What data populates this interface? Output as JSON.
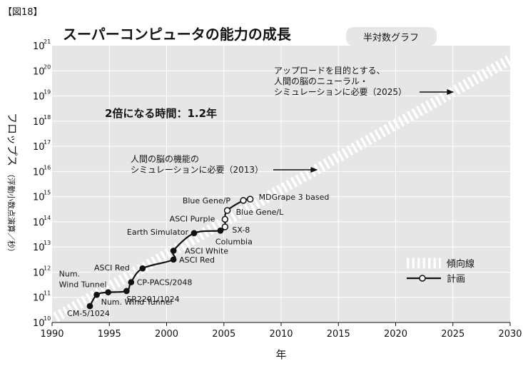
{
  "figure_label": "【図18】",
  "chart_data": {
    "type": "line",
    "title": "スーパーコンピュータの能力の成長",
    "scale_badge": "半対数グラフ",
    "xlabel": "年",
    "ylabel_main": "フロップス",
    "ylabel_sub": "（浮動小数点演算／秒）",
    "xlim": [
      1990,
      2030
    ],
    "xticks": [
      "1990",
      "1995",
      "2000",
      "2005",
      "2010",
      "2015",
      "2020",
      "2025",
      "2030"
    ],
    "y_log_scale": true,
    "ylim_exponents": [
      10,
      21
    ],
    "y_tick_base": "10",
    "y_tick_exponents": [
      "10",
      "11",
      "12",
      "13",
      "14",
      "15",
      "16",
      "17",
      "18",
      "19",
      "20",
      "21"
    ],
    "grid": true,
    "background_color": "#e6e6e6",
    "accent_color": "#111111",
    "doubling_time_text": "2倍になる時間：1.2年",
    "legend": {
      "placement": "right",
      "trend_label": "傾向線",
      "plan_label": "計画"
    },
    "trend_line": {
      "start": [
        1990.3,
        10.2
      ],
      "end": [
        2030,
        20.45
      ]
    },
    "series": [
      {
        "name": "計画",
        "points": [
          {
            "x": 1993.3,
            "y": 10.65,
            "label": "CM-5/1024",
            "hollow": false
          },
          {
            "x": 1993.9,
            "y": 11.1,
            "label": "Num. Wind Tunnel",
            "hollow": false
          },
          {
            "x": 1994.9,
            "y": 11.2,
            "label": "",
            "hollow": false
          },
          {
            "x": 1996.5,
            "y": 11.25,
            "label": "SR2201/1024",
            "hollow": false
          },
          {
            "x": 1996.9,
            "y": 11.6,
            "label": "CP-PACS/2048",
            "hollow": false
          },
          {
            "x": 1997.9,
            "y": 12.15,
            "label": "ASCI Red",
            "hollow": false
          },
          {
            "x": 2000.6,
            "y": 12.5,
            "label": "ASCI Red",
            "hollow": false
          },
          {
            "x": 2000.6,
            "y": 12.85,
            "label": "ASCI White",
            "hollow": false
          },
          {
            "x": 2002.4,
            "y": 13.55,
            "label": "Earth Simulator",
            "hollow": false
          },
          {
            "x": 2004.7,
            "y": 13.65,
            "label": "Columbia",
            "hollow": false
          },
          {
            "x": 2005.1,
            "y": 13.8,
            "label": "SX-8",
            "hollow": true
          },
          {
            "x": 2005.1,
            "y": 14.1,
            "label": "ASCI Purple",
            "hollow": true
          },
          {
            "x": 2005.3,
            "y": 14.45,
            "label": "Blue Gene/L",
            "hollow": true
          },
          {
            "x": 2006.7,
            "y": 14.85,
            "label": "Blue Gene/P",
            "hollow": true
          },
          {
            "x": 2007.3,
            "y": 14.9,
            "label": "MDGrape 3 based",
            "hollow": true
          }
        ]
      }
    ],
    "extra_labels": [
      {
        "text": "Num.",
        "x": 1990.6,
        "y": 11.94
      },
      {
        "text": "Wind Tunnel",
        "x": 1990.6,
        "y": 11.52
      }
    ],
    "annotations": [
      {
        "lines": [
          "人間の脳の機能の",
          "シミュレーションに必要（2013）"
        ],
        "arrow_end": [
          2013.2,
          16.32
        ]
      },
      {
        "lines": [
          "アップロードを目的とする、",
          "人間の脳のニューラル・",
          "シミュレーションに必要（2025）"
        ],
        "arrow_end": [
          2025.1,
          19.05
        ]
      }
    ]
  }
}
